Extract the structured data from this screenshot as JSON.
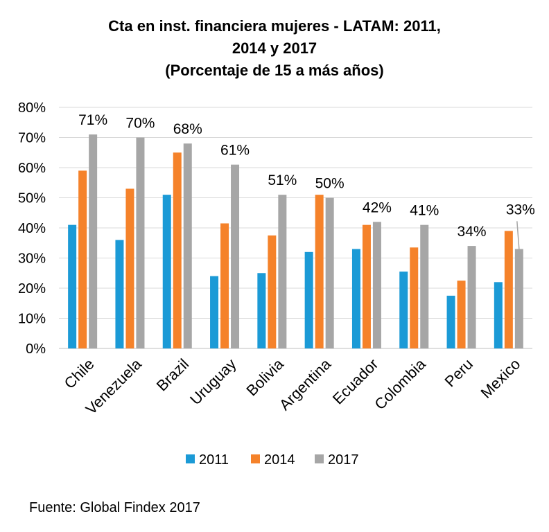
{
  "chart_data": {
    "type": "bar",
    "title_lines": [
      "Cta en inst. financiera mujeres - LATAM: 2011,",
      "2014 y 2017",
      "(Porcentaje de 15 a más años)"
    ],
    "categories": [
      "Chile",
      "Venezuela",
      "Brazil",
      "Uruguay",
      "Bolivia",
      "Argentina",
      "Ecuador",
      "Colombia",
      "Peru",
      "Mexico"
    ],
    "series": [
      {
        "name": "2011",
        "color": "#1B9AD6",
        "values": [
          41,
          36,
          51,
          24,
          25,
          32,
          33,
          25.5,
          17.5,
          22
        ]
      },
      {
        "name": "2014",
        "color": "#F5822A",
        "values": [
          59,
          53,
          65,
          41.5,
          37.5,
          51,
          41,
          33.5,
          22.5,
          39
        ]
      },
      {
        "name": "2017",
        "color": "#A6A6A6",
        "values": [
          71,
          70,
          68,
          61,
          51,
          50,
          42,
          41,
          34,
          33
        ]
      }
    ],
    "data_labels": [
      "71%",
      "70%",
      "68%",
      "61%",
      "51%",
      "50%",
      "42%",
      "41%",
      "34%",
      "33%"
    ],
    "y_ticks": [
      "0%",
      "10%",
      "20%",
      "30%",
      "40%",
      "50%",
      "60%",
      "70%",
      "80%"
    ],
    "ylim": [
      0,
      80
    ],
    "grid": true,
    "legend": "bottom"
  },
  "source": "Fuente: Global Findex 2017"
}
